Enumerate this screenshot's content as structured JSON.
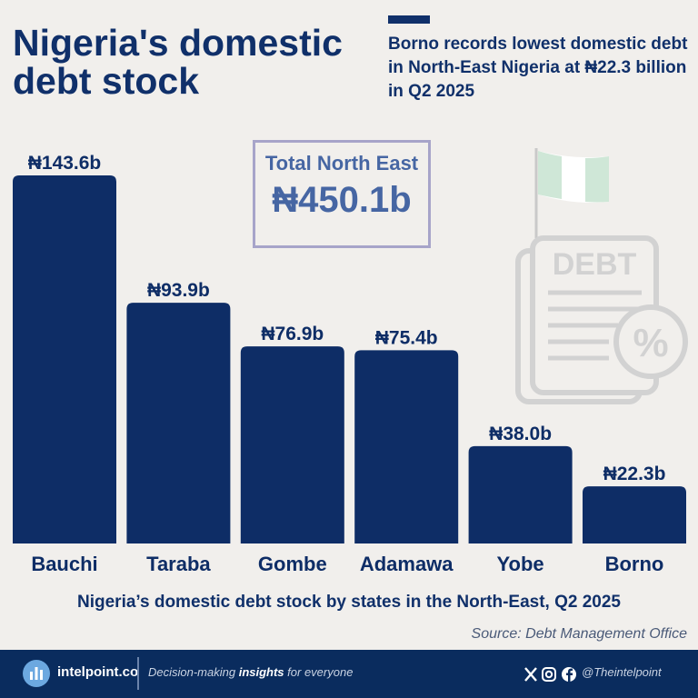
{
  "header": {
    "title": "Nigeria's domestic debt stock",
    "subtitle": "Borno records lowest domestic debt in North-East Nigeria at ₦22.3 billion in Q2 2025"
  },
  "total": {
    "label": "Total North East",
    "value": "₦450.1b"
  },
  "chart_data": {
    "type": "bar",
    "title": "Nigeria’s domestic debt stock by states in the North-East, Q2 2025",
    "categories": [
      "Bauchi",
      "Taraba",
      "Gombe",
      "Adamawa",
      "Yobe",
      "Borno"
    ],
    "values": [
      143.6,
      93.9,
      76.9,
      75.4,
      38.0,
      22.3
    ],
    "value_labels": [
      "₦143.6b",
      "₦93.9b",
      "₦76.9b",
      "₦75.4b",
      "₦38.0b",
      "₦22.3b"
    ],
    "unit": "billion naira",
    "grid": false,
    "legend": "none"
  },
  "illustration": {
    "stamp_text": "DEBT",
    "symbol": "%"
  },
  "source": "Source: Debt Management Office",
  "footer": {
    "brand": "intelpoint.co",
    "tagline_pre": "Decision-making ",
    "tagline_bold": "insights",
    "tagline_post": " for everyone",
    "handle": "@Theintelpoint"
  },
  "colors": {
    "bar": "#0e2d66",
    "title": "#10306a",
    "accent_box": "#a7a4c9",
    "background": "#f1efec",
    "footer": "#0a2c5e",
    "flag_green": "#cfe7d7"
  }
}
